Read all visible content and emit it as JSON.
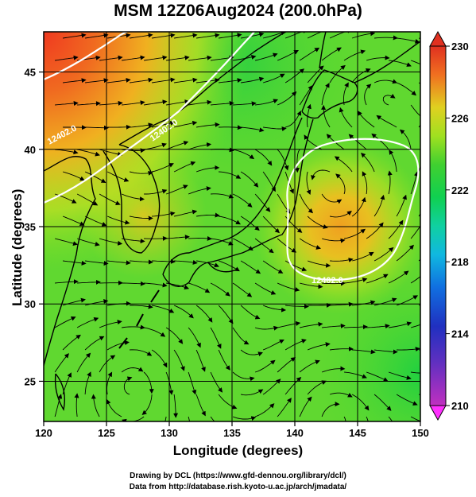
{
  "title": "MSM 12Z06Aug2024 (200.0hPa)",
  "x_axis": {
    "label": "Longitude (degrees)",
    "min": 120,
    "max": 150,
    "ticks": [
      "120",
      "125",
      "130",
      "135",
      "140",
      "145",
      "150"
    ]
  },
  "y_axis": {
    "label": "Latitude  (degrees)",
    "min": 22.4,
    "max": 47.6,
    "ticks": [
      "25",
      "30",
      "35",
      "40",
      "45"
    ]
  },
  "colorbar": {
    "min": 210,
    "max": 230,
    "tick_labels": [
      "230",
      "226",
      "222",
      "218",
      "214",
      "210"
    ],
    "colors": [
      "#ff20ff",
      "#c020c0",
      "#2020c0",
      "#1060e0",
      "#10b0e0",
      "#10d0b0",
      "#10d060",
      "#30d030",
      "#80e020",
      "#d0e020",
      "#f0b020",
      "#f07020",
      "#e03020",
      "#ff8080"
    ]
  },
  "contour_labels": [
    "12402.0",
    "12402.0",
    "12402.0"
  ],
  "credits": {
    "line1": "Drawing by DCL (https://www.gfd-dennou.org/library/dcl/)",
    "line2": "Data from http://database.rish.kyoto-u.ac.jp/arch/jmadata/"
  }
}
